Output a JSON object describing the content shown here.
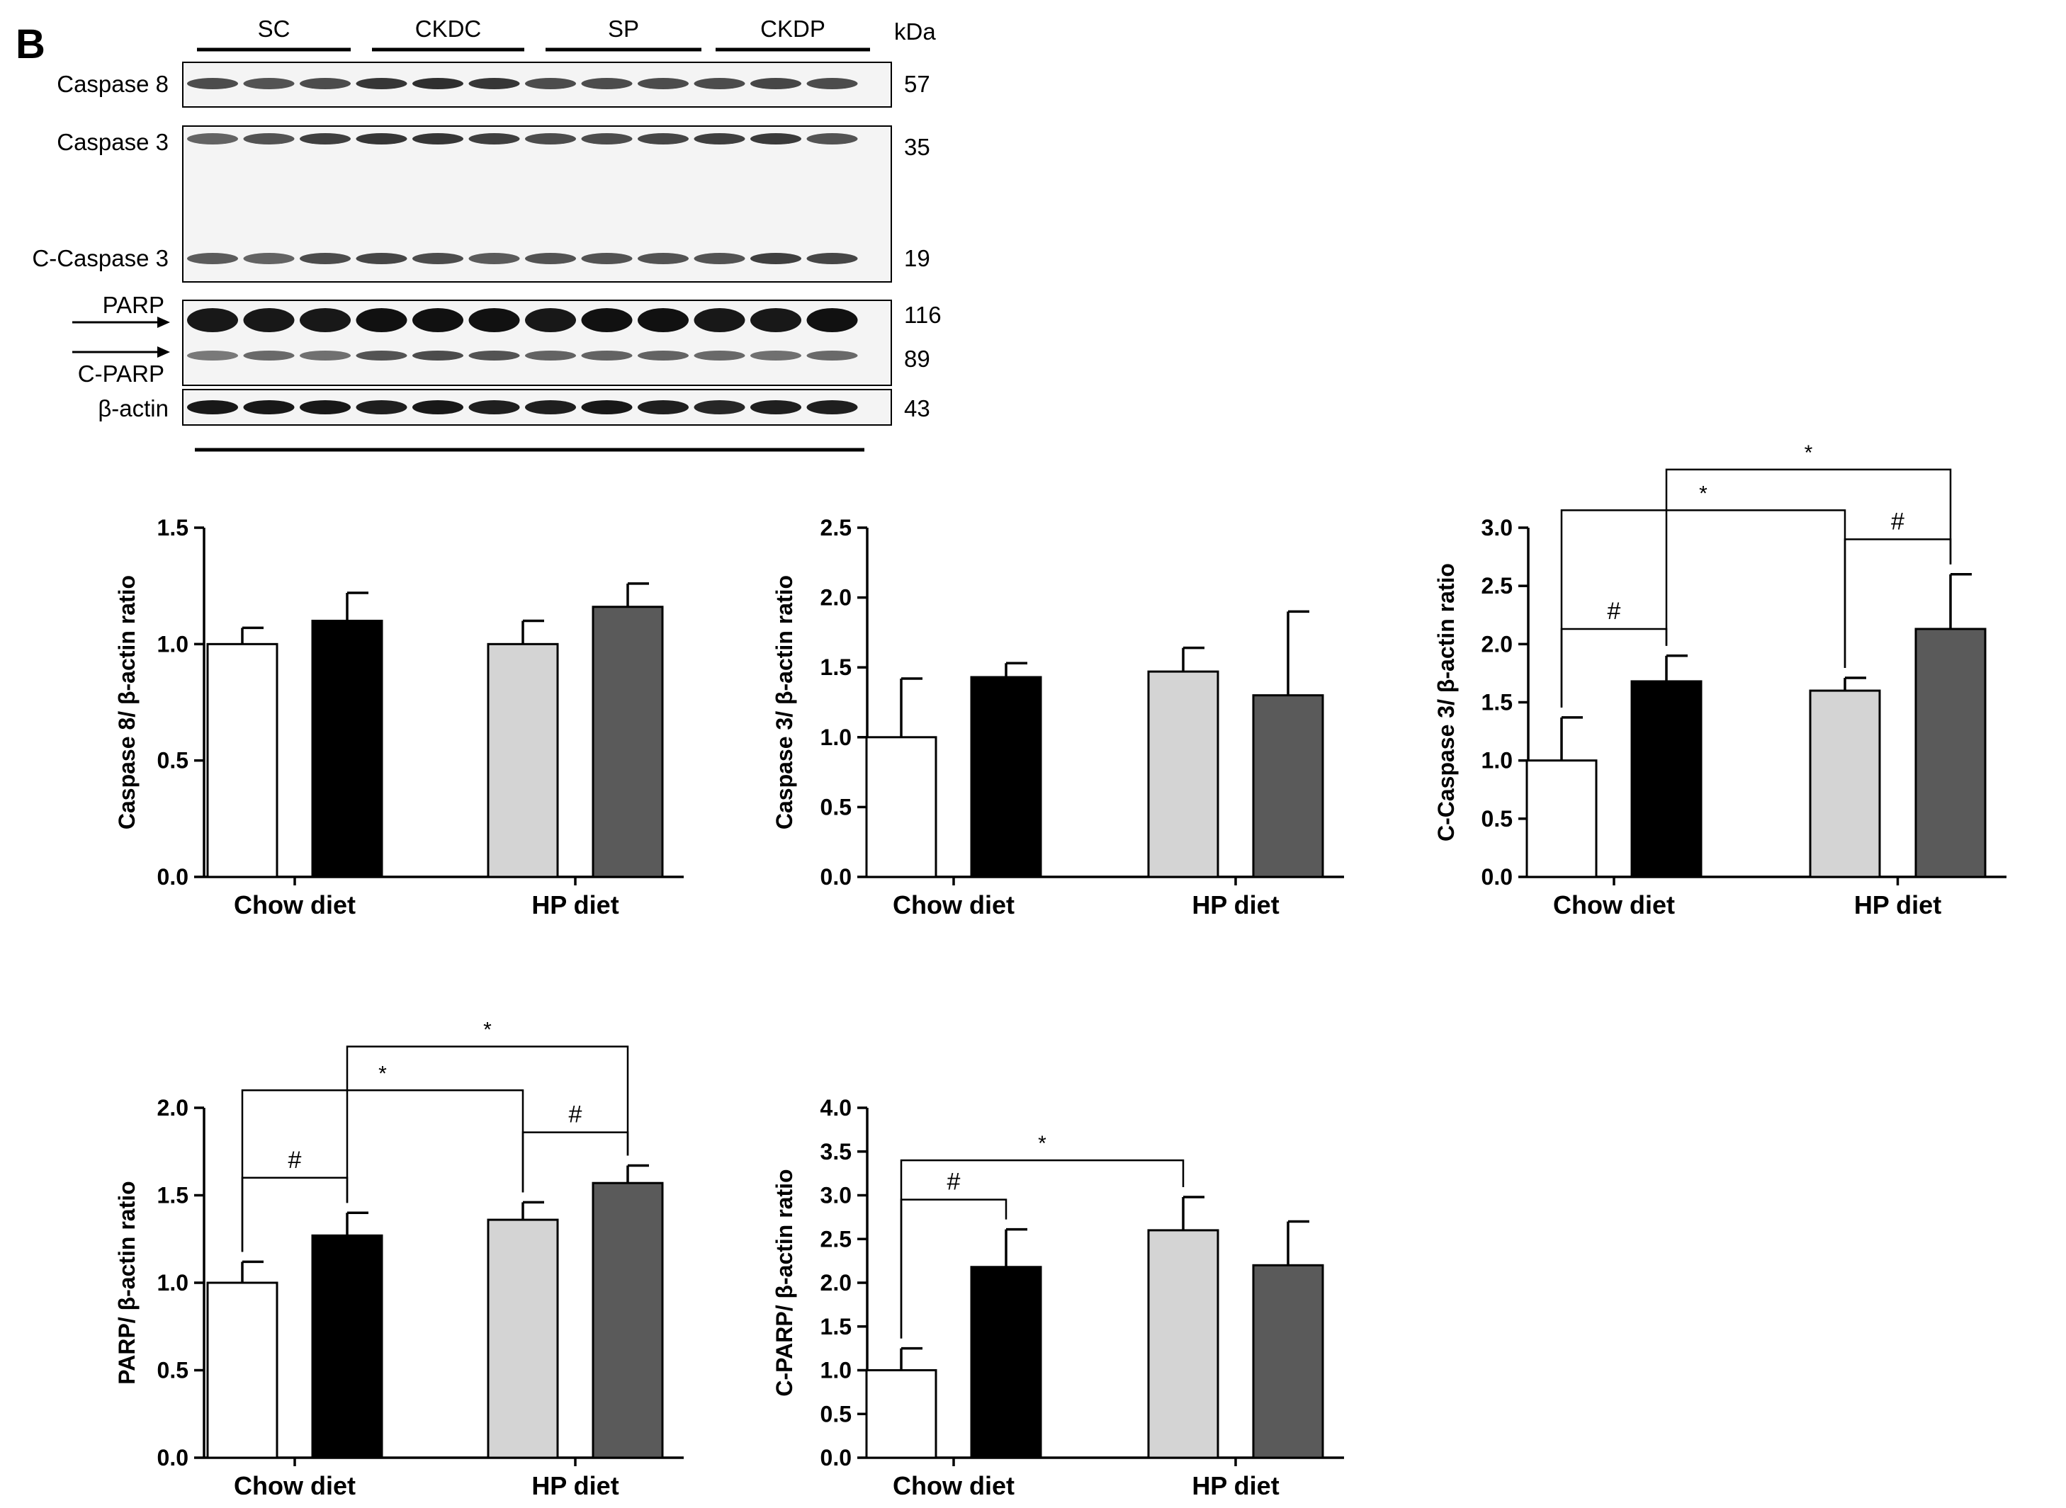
{
  "panel_label": "B",
  "blot": {
    "groups": [
      "SC",
      "CKDC",
      "SP",
      "CKDP"
    ],
    "kda_label": "kDa",
    "rows": [
      {
        "label": "Caspase 8",
        "kda": "57"
      },
      {
        "label": "Caspase 3",
        "kda": "35"
      },
      {
        "label": "C-Caspase 3",
        "kda": "19"
      },
      {
        "label": "PARP",
        "kda": "116"
      },
      {
        "label": "C-PARP",
        "kda": "89"
      },
      {
        "label": "β-actin",
        "kda": "43"
      }
    ]
  },
  "colors": {
    "SC": "#ffffff",
    "CKDC": "#000000",
    "SP": "#d4d4d4",
    "CKDP": "#5a5a5a",
    "axis": "#000000"
  },
  "chart_data": [
    {
      "type": "bar",
      "title": "",
      "ylabel": "Caspase 8/ β-actin ratio",
      "categories": [
        "Chow diet",
        "HP diet"
      ],
      "ylim": [
        0,
        1.5
      ],
      "yticks": [
        "0.0",
        "0.5",
        "1.0",
        "1.5"
      ],
      "series": [
        {
          "name": "SC",
          "values": [
            1.0,
            null
          ],
          "errors": [
            0.07,
            null
          ]
        },
        {
          "name": "CKDC",
          "values": [
            1.1,
            null
          ],
          "errors": [
            0.12,
            null
          ]
        },
        {
          "name": "SP",
          "values": [
            null,
            1.0
          ],
          "errors": [
            null,
            0.1
          ]
        },
        {
          "name": "CKDP",
          "values": [
            null,
            1.16
          ],
          "errors": [
            null,
            0.1
          ]
        }
      ],
      "annotations": []
    },
    {
      "type": "bar",
      "title": "",
      "ylabel": "Caspase 3/ β-actin ratio",
      "categories": [
        "Chow diet",
        "HP diet"
      ],
      "ylim": [
        0,
        2.5
      ],
      "yticks": [
        "0.0",
        "0.5",
        "1.0",
        "1.5",
        "2.0",
        "2.5"
      ],
      "series": [
        {
          "name": "SC",
          "values": [
            1.0,
            null
          ],
          "errors": [
            0.42,
            null
          ]
        },
        {
          "name": "CKDC",
          "values": [
            1.43,
            null
          ],
          "errors": [
            0.1,
            null
          ]
        },
        {
          "name": "SP",
          "values": [
            null,
            1.47
          ],
          "errors": [
            null,
            0.17
          ]
        },
        {
          "name": "CKDP",
          "values": [
            null,
            1.3
          ],
          "errors": [
            null,
            0.6
          ]
        }
      ],
      "annotations": []
    },
    {
      "type": "bar",
      "title": "",
      "ylabel": "C-Caspase 3/ β-actin ratio",
      "categories": [
        "Chow diet",
        "HP diet"
      ],
      "ylim": [
        0,
        3.0
      ],
      "yticks": [
        "0.0",
        "0.5",
        "1.0",
        "1.5",
        "2.0",
        "2.5",
        "3.0"
      ],
      "series": [
        {
          "name": "SC",
          "values": [
            1.0,
            null
          ],
          "errors": [
            0.37,
            null
          ]
        },
        {
          "name": "CKDC",
          "values": [
            1.68,
            null
          ],
          "errors": [
            0.22,
            null
          ]
        },
        {
          "name": "SP",
          "values": [
            null,
            1.6
          ],
          "errors": [
            null,
            0.11
          ]
        },
        {
          "name": "CKDP",
          "values": [
            null,
            2.13
          ],
          "errors": [
            null,
            0.47
          ]
        }
      ],
      "annotations": [
        {
          "from": 0,
          "to": 1,
          "label": "#",
          "y": 2.13
        },
        {
          "from": 2,
          "to": 3,
          "label": "#",
          "y": 2.9
        },
        {
          "from": 0,
          "to": 2,
          "label": "*",
          "y": 3.15
        },
        {
          "from": 1,
          "to": 3,
          "label": "*",
          "y": 3.5
        }
      ]
    },
    {
      "type": "bar",
      "title": "",
      "ylabel": "PARP/ β-actin ratio",
      "categories": [
        "Chow diet",
        "HP diet"
      ],
      "ylim": [
        0,
        2.0
      ],
      "yticks": [
        "0.0",
        "0.5",
        "1.0",
        "1.5",
        "2.0"
      ],
      "series": [
        {
          "name": "SC",
          "values": [
            1.0,
            null
          ],
          "errors": [
            0.12,
            null
          ]
        },
        {
          "name": "CKDC",
          "values": [
            1.27,
            null
          ],
          "errors": [
            0.13,
            null
          ]
        },
        {
          "name": "SP",
          "values": [
            null,
            1.36
          ],
          "errors": [
            null,
            0.1
          ]
        },
        {
          "name": "CKDP",
          "values": [
            null,
            1.57
          ],
          "errors": [
            null,
            0.1
          ]
        }
      ],
      "annotations": [
        {
          "from": 0,
          "to": 1,
          "label": "#",
          "y": 1.6
        },
        {
          "from": 2,
          "to": 3,
          "label": "#",
          "y": 1.86
        },
        {
          "from": 0,
          "to": 2,
          "label": "*",
          "y": 2.1
        },
        {
          "from": 1,
          "to": 3,
          "label": "*",
          "y": 2.35
        }
      ]
    },
    {
      "type": "bar",
      "title": "",
      "ylabel": "C-PARP/ β-actin ratio",
      "categories": [
        "Chow diet",
        "HP diet"
      ],
      "ylim": [
        0,
        4.0
      ],
      "yticks": [
        "0.0",
        "0.5",
        "1.0",
        "1.5",
        "2.0",
        "2.5",
        "3.0",
        "3.5",
        "4.0"
      ],
      "series": [
        {
          "name": "SC",
          "values": [
            1.0,
            null
          ],
          "errors": [
            0.25,
            null
          ]
        },
        {
          "name": "CKDC",
          "values": [
            2.18,
            null
          ],
          "errors": [
            0.43,
            null
          ]
        },
        {
          "name": "SP",
          "values": [
            null,
            2.6
          ],
          "errors": [
            null,
            0.38
          ]
        },
        {
          "name": "CKDP",
          "values": [
            null,
            2.2
          ],
          "errors": [
            null,
            0.5
          ]
        }
      ],
      "annotations": [
        {
          "from": 0,
          "to": 1,
          "label": "#",
          "y": 2.95
        },
        {
          "from": 0,
          "to": 2,
          "label": "*",
          "y": 3.4
        }
      ]
    }
  ]
}
